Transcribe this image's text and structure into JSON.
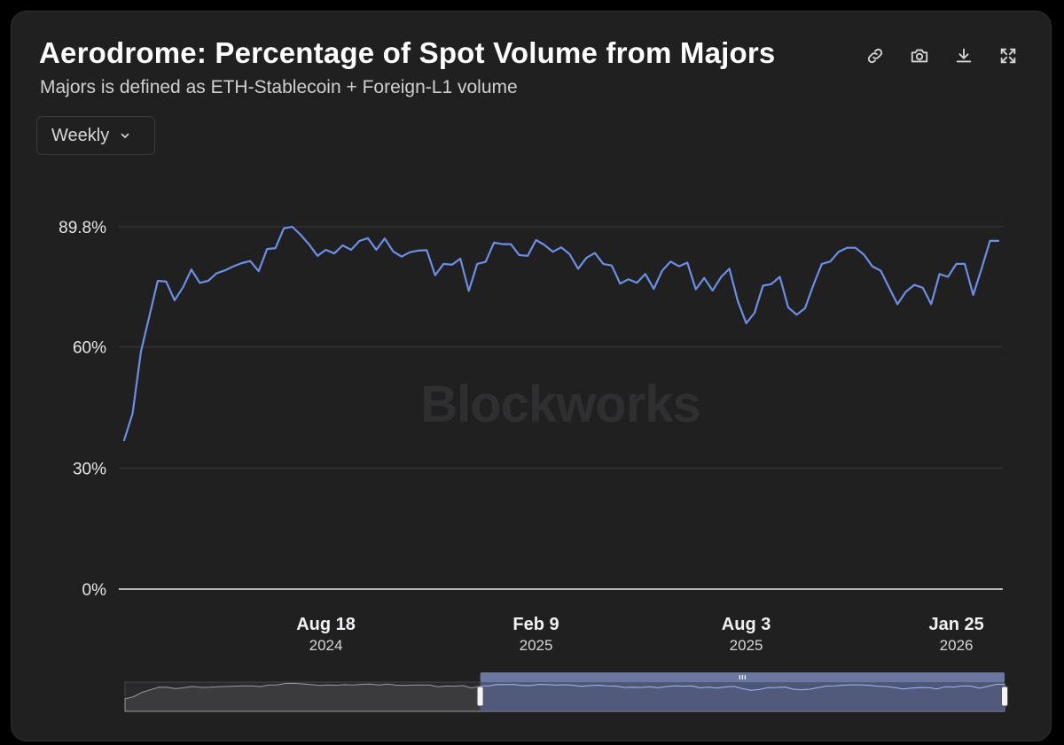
{
  "header": {
    "title": "Aerodrome: Percentage of Spot Volume from Majors",
    "subtitle": "Majors is defined as ETH-Stablecoin + Foreign-L1 volume"
  },
  "toolbar": {
    "icons": [
      "link-icon",
      "camera-icon",
      "download-icon",
      "expand-icon"
    ]
  },
  "interval_select": {
    "value": "Weekly"
  },
  "watermark": "Blockworks",
  "colors": {
    "background": "#202021",
    "line": "#6b8fe6",
    "grid": "#3a3a3c",
    "navigator_fill": "#5b6690"
  },
  "chart_data": {
    "type": "line",
    "title": "Aerodrome: Percentage of Spot Volume from Majors",
    "subtitle": "Majors is defined as ETH-Stablecoin + Foreign-L1 volume",
    "xlabel": "",
    "ylabel": "",
    "ylim": [
      0,
      89.8
    ],
    "yticks": [
      {
        "value": 0,
        "label": "0%"
      },
      {
        "value": 30,
        "label": "30%"
      },
      {
        "value": 60,
        "label": "60%"
      },
      {
        "value": 89.8,
        "label": "89.8%"
      }
    ],
    "xticks": [
      {
        "index": 24,
        "label": "Aug 18",
        "sublabel": "2024"
      },
      {
        "index": 49,
        "label": "Feb 9",
        "sublabel": "2025"
      },
      {
        "index": 74,
        "label": "Aug 3",
        "sublabel": "2025"
      },
      {
        "index": 99,
        "label": "Jan 25",
        "sublabel": "2026"
      }
    ],
    "grid": true,
    "legend": "none",
    "series": [
      {
        "name": "Percentage of Spot Volume from Majors",
        "values": [
          36.9,
          43.5,
          58.9,
          67.6,
          76.4,
          76.2,
          71.6,
          74.8,
          79.2,
          75.9,
          76.4,
          78.3,
          79.0,
          80.0,
          80.8,
          81.3,
          78.8,
          84.3,
          84.5,
          89.4,
          89.8,
          87.8,
          85.4,
          82.6,
          84.1,
          83.2,
          85.2,
          84.1,
          86.3,
          87.0,
          84.1,
          86.9,
          83.7,
          82.4,
          83.5,
          83.9,
          84.0,
          77.8,
          80.6,
          80.4,
          81.9,
          73.9,
          80.6,
          81.1,
          85.9,
          85.5,
          85.5,
          82.8,
          82.6,
          86.5,
          85.3,
          83.6,
          84.7,
          83.0,
          79.4,
          82.1,
          83.3,
          80.6,
          80.2,
          75.7,
          76.8,
          75.9,
          78.1,
          74.4,
          78.9,
          81.2,
          80.0,
          80.9,
          74.3,
          77.1,
          74.0,
          77.3,
          79.4,
          71.4,
          65.9,
          68.5,
          75.2,
          75.6,
          77.4,
          69.8,
          68.0,
          69.6,
          75.4,
          80.6,
          81.2,
          83.6,
          84.6,
          84.6,
          82.9,
          80.0,
          78.9,
          74.7,
          70.6,
          73.7,
          75.4,
          74.7,
          70.6,
          78.1,
          77.4,
          80.6,
          80.6,
          72.9,
          79.4,
          86.3,
          86.3
        ]
      }
    ],
    "navigator": {
      "selected_range_start_index": 42,
      "selected_range_end_index": 104
    }
  }
}
